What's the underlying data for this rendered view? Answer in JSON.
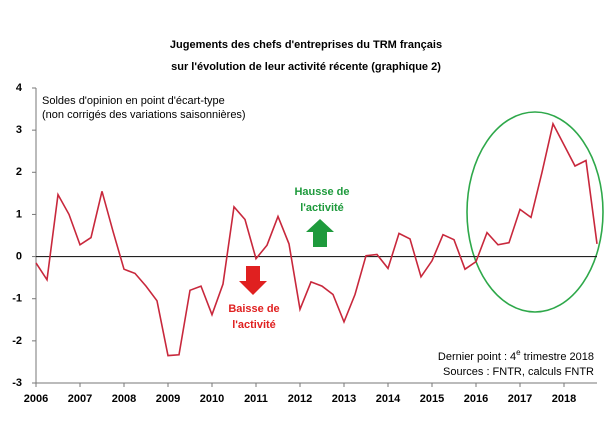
{
  "chart_data": {
    "type": "line",
    "title": [
      "Jugements des chefs d'entreprises du TRM français",
      "sur l'évolution de leur activité récente (graphique 2)"
    ],
    "subtitle": [
      "Soldes d'opinion en point d'écart-type",
      "(non corrigés des variations saisonnières)"
    ],
    "annotations": {
      "up": [
        "Hausse de",
        "l'activité"
      ],
      "down": [
        "Baisse de",
        "l'activité"
      ],
      "last_point": [
        "Dernier point : 4",
        "e",
        " trimestre 2018"
      ],
      "sources": "Sources : FNTR, calculs FNTR"
    },
    "categories": [
      "2006",
      null,
      null,
      null,
      "2007",
      null,
      null,
      null,
      "2008",
      null,
      null,
      null,
      "2009",
      null,
      null,
      null,
      "2010",
      null,
      null,
      null,
      "2011",
      null,
      null,
      null,
      "2012",
      null,
      null,
      null,
      "2013",
      null,
      null,
      null,
      "2014",
      null,
      null,
      null,
      "2015",
      null,
      null,
      null,
      "2016",
      null,
      null,
      null,
      "2017",
      null,
      null,
      null,
      "2018",
      null,
      null,
      null
    ],
    "series": [
      {
        "color": "#c8283c",
        "values": [
          -0.15,
          -0.55,
          1.47,
          1.0,
          0.28,
          0.45,
          1.55,
          0.6,
          -0.3,
          -0.4,
          -0.7,
          -1.05,
          -2.35,
          -2.33,
          -0.8,
          -0.7,
          -1.38,
          -0.65,
          1.18,
          0.88,
          -0.05,
          0.27,
          0.95,
          0.3,
          -1.25,
          -0.6,
          -0.7,
          -0.9,
          -1.55,
          -0.9,
          0.02,
          0.05,
          -0.28,
          0.55,
          0.42,
          -0.48,
          -0.1,
          0.52,
          0.4,
          -0.3,
          -0.12,
          0.57,
          0.28,
          0.33,
          1.12,
          0.93,
          2.0,
          3.15,
          2.65,
          2.15,
          2.28,
          0.3
        ]
      }
    ],
    "ylim": [
      -3,
      4
    ],
    "yticks": [
      -3,
      -2,
      -1,
      0,
      1,
      2,
      3,
      4
    ]
  }
}
